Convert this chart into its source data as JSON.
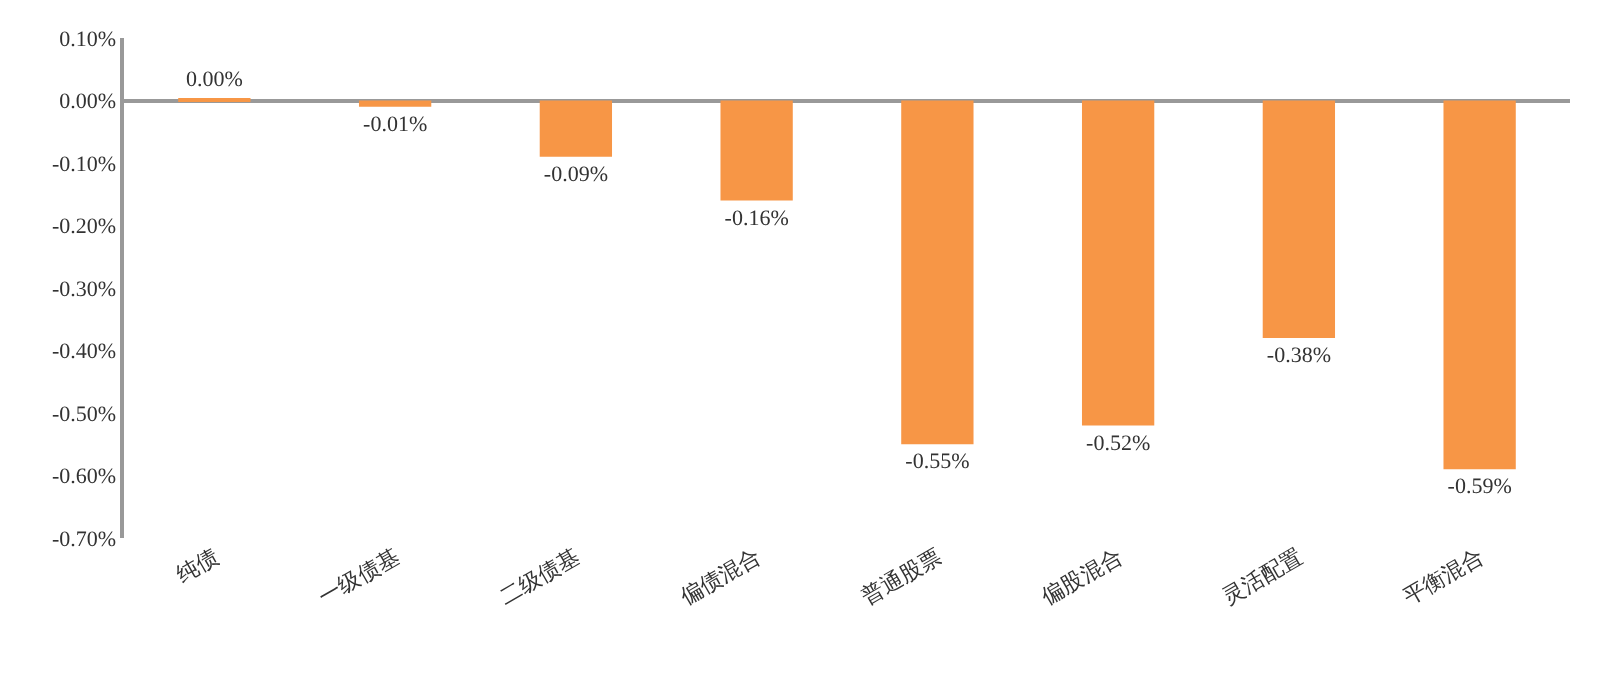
{
  "chart_data": {
    "type": "bar",
    "categories": [
      "纯债",
      "一级债基",
      "二级债基",
      "偏债混合",
      "普通股票",
      "偏股混合",
      "灵活配置",
      "平衡混合"
    ],
    "values": [
      0.004,
      -0.01,
      -0.09,
      -0.16,
      -0.55,
      -0.52,
      -0.38,
      -0.59
    ],
    "value_labels": [
      "0.00%",
      "-0.01%",
      "-0.09%",
      "-0.16%",
      "-0.55%",
      "-0.52%",
      "-0.38%",
      "-0.59%"
    ],
    "color": "#f79646",
    "ylim": [
      -0.7,
      0.1
    ],
    "yticks": [
      {
        "value": 0.1,
        "label": "0.10%"
      },
      {
        "value": 0.0,
        "label": "0.00%"
      },
      {
        "value": -0.1,
        "label": "-0.10%"
      },
      {
        "value": -0.2,
        "label": "-0.20%"
      },
      {
        "value": -0.3,
        "label": "-0.30%"
      },
      {
        "value": -0.4,
        "label": "-0.40%"
      },
      {
        "value": -0.5,
        "label": "-0.50%"
      },
      {
        "value": -0.6,
        "label": "-0.60%"
      },
      {
        "value": -0.7,
        "label": "-0.70%"
      }
    ],
    "legend": false
  }
}
